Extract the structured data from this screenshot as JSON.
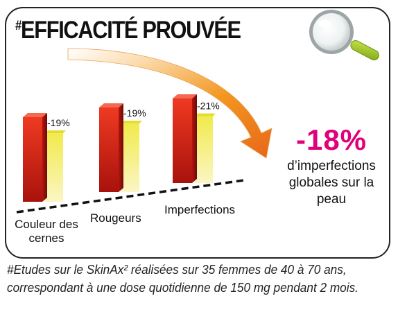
{
  "title": "EFFICACITÉ PROUVÉE",
  "title_mark": "#",
  "highlight": {
    "value": "-18%",
    "text": "d’imperfections globales sur la peau",
    "color": "#e0007a"
  },
  "footnote": {
    "line1": "#Etudes sur le SkinAx² réalisées sur 35 femmes de 40 à 70 ans,",
    "line2": "correspondant à une dose quotidienne de 150 mg pendant 2 mois."
  },
  "icons": {
    "magnifier": "magnifier-icon",
    "arrow": "curved-arrow-icon"
  },
  "chart_data": {
    "type": "bar",
    "categories": [
      "Couleur des cernes",
      "Rougeurs",
      "Imperfections"
    ],
    "series": [
      {
        "values": [
          100,
          100,
          100
        ],
        "color": "#d42318"
      },
      {
        "values": [
          81,
          81,
          79
        ],
        "color": "#e8e04a"
      }
    ],
    "data_labels": [
      "-19%",
      "-19%",
      "-21%"
    ],
    "ylim": [
      0,
      100
    ]
  }
}
